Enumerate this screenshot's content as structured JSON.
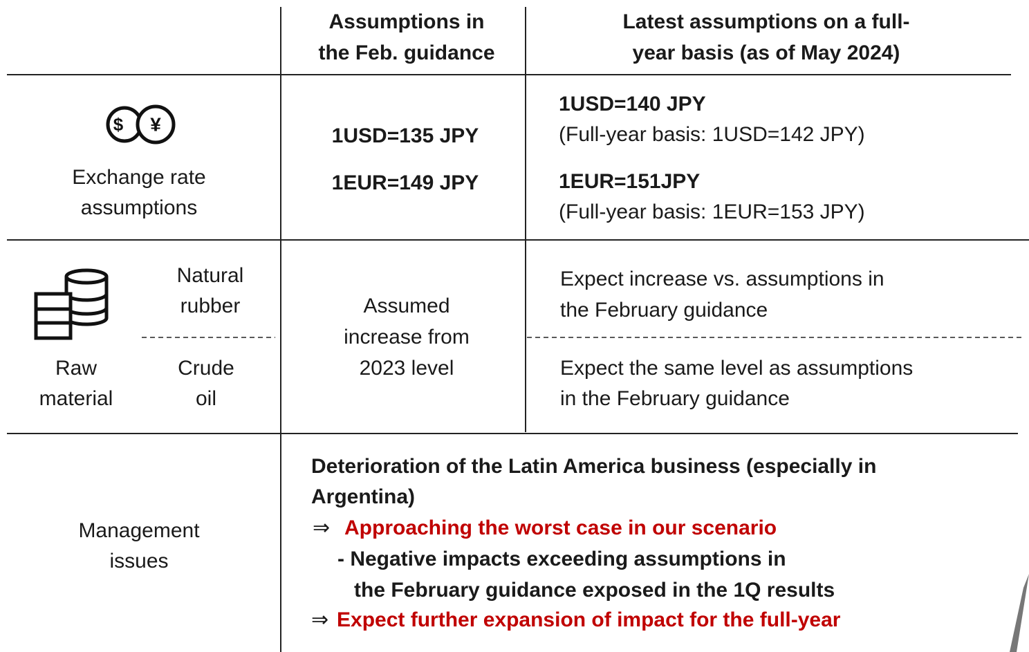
{
  "header": {
    "feb": [
      "Assumptions in",
      "the Feb. guidance"
    ],
    "latest": [
      "Latest assumptions on a full-",
      "year basis (as of May 2024)"
    ]
  },
  "exchange": {
    "label": [
      "Exchange rate",
      "assumptions"
    ],
    "feb": [
      "1USD=135 JPY",
      "1EUR=149 JPY"
    ],
    "latest": [
      {
        "main": "1USD=140 JPY",
        "sub": "(Full-year basis: 1USD=142 JPY)"
      },
      {
        "main": "1EUR=151JPY",
        "sub": "(Full-year basis: 1EUR=153 JPY)"
      }
    ]
  },
  "raw": {
    "label": [
      "Raw",
      "material"
    ],
    "feb": [
      "Assumed",
      "increase from",
      "2023 level"
    ],
    "items": [
      {
        "name": [
          "Natural",
          "rubber"
        ],
        "latest": [
          "Expect increase vs. assumptions in",
          "the February guidance"
        ]
      },
      {
        "name": [
          "Crude",
          "oil"
        ],
        "latest": [
          "Expect the same level as assumptions",
          "in the February guidance"
        ]
      }
    ]
  },
  "management": {
    "label": [
      "Management",
      "issues"
    ],
    "lines": [
      "Deterioration of the Latin America business (especially in",
      "Argentina)",
      "⇒",
      "Approaching the worst case in our scenario",
      "- Negative impacts exceeding assumptions in",
      "the February guidance exposed in the 1Q results",
      "⇒",
      "Expect further expansion of impact for the full-year"
    ]
  }
}
